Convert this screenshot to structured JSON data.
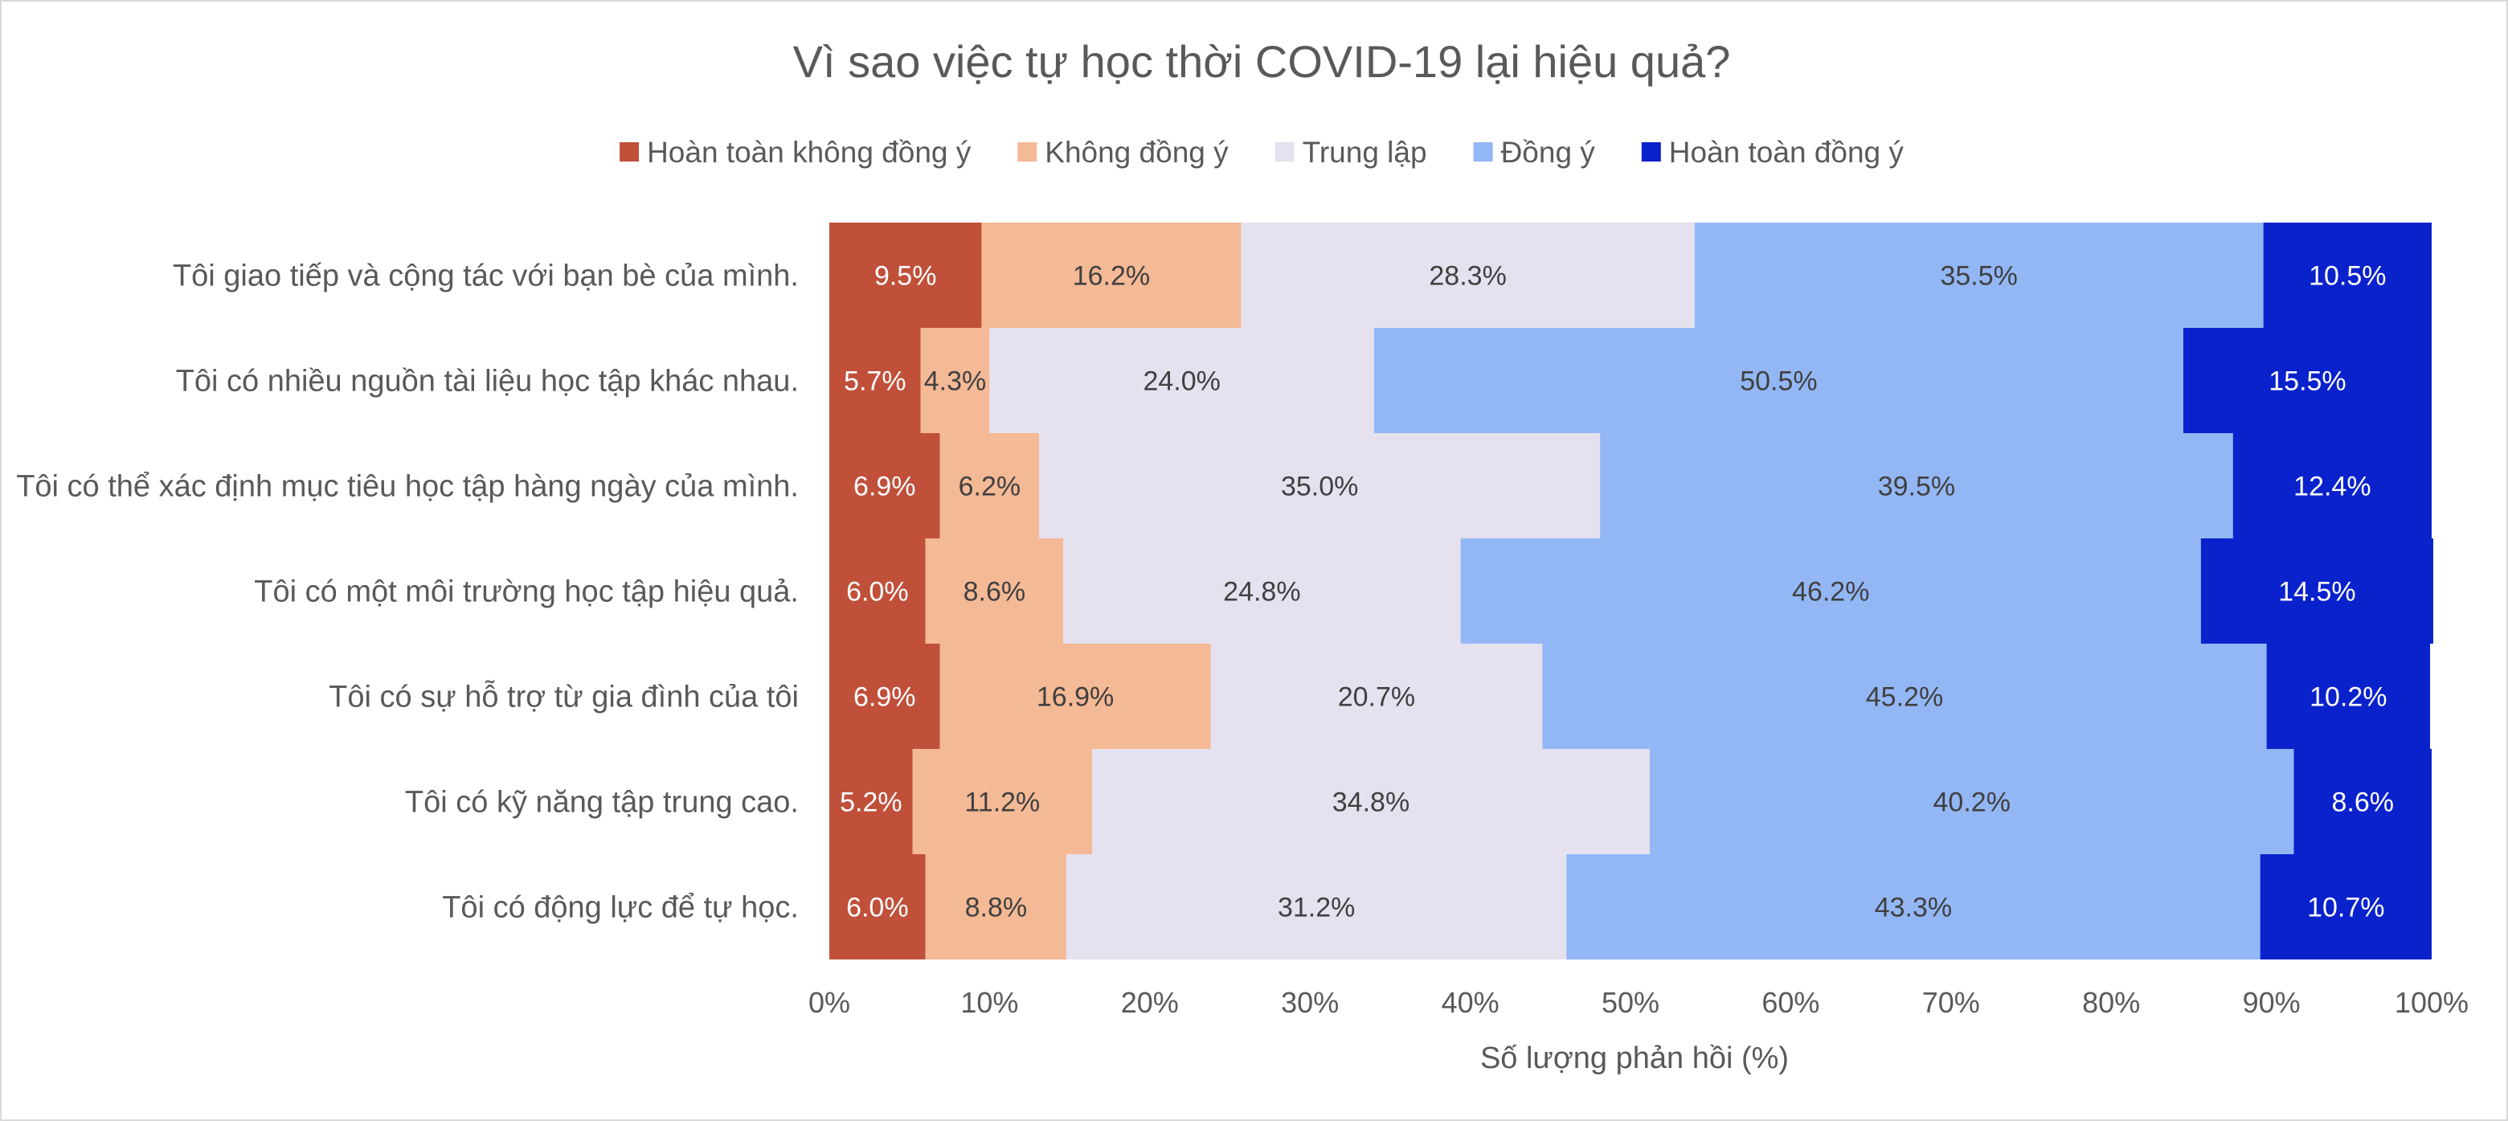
{
  "chart_data": {
    "type": "bar",
    "orientation": "horizontal",
    "stacked": "100%",
    "title": "Vì sao việc tự học thời COVID-19 lại hiệu quả?",
    "xlabel": "Số lượng phản hồi (%)",
    "ylabel": "",
    "xlim": [
      0,
      100
    ],
    "x_ticks": [
      "0%",
      "10%",
      "20%",
      "30%",
      "40%",
      "50%",
      "60%",
      "70%",
      "80%",
      "90%",
      "100%"
    ],
    "grid": false,
    "legend_position": "top",
    "categories": [
      "Tôi giao tiếp và cộng tác với bạn bè của mình.",
      "Tôi có nhiều nguồn tài liệu học tập khác nhau.",
      "Tôi có thể xác định mục tiêu học tập hàng ngày của mình.",
      "Tôi có một môi trường học tập hiệu quả.",
      "Tôi có sự hỗ trợ từ gia đình của tôi",
      "Tôi có kỹ năng tập trung cao.",
      "Tôi có động lực để tự học."
    ],
    "series": [
      {
        "name": "Hoàn toàn không đồng ý",
        "color": "#C0503A",
        "label_color": "#ffffff",
        "values": [
          9.5,
          5.7,
          6.9,
          6.0,
          6.9,
          5.2,
          6.0
        ],
        "labels": [
          "9.5%",
          "5.7%",
          "6.9%",
          "6.0%",
          "6.9%",
          "5.2%",
          "6.0%"
        ]
      },
      {
        "name": "Không đồng ý",
        "color": "#F4B995",
        "label_color": "#404040",
        "values": [
          16.2,
          4.3,
          6.2,
          8.6,
          16.9,
          11.2,
          8.8
        ],
        "labels": [
          "16.2%",
          "4.3%",
          "6.2%",
          "8.6%",
          "16.9%",
          "11.2%",
          "8.8%"
        ]
      },
      {
        "name": "Trung lập",
        "color": "#E6E1EE",
        "label_color": "#404040",
        "values": [
          28.3,
          24.0,
          35.0,
          24.8,
          20.7,
          34.8,
          31.2
        ],
        "labels": [
          "28.3%",
          "24.0%",
          "35.0%",
          "24.8%",
          "20.7%",
          "34.8%",
          "31.2%"
        ]
      },
      {
        "name": "Đồng ý",
        "color": "#93B7F5",
        "label_color": "#404040",
        "values": [
          35.5,
          50.5,
          39.5,
          46.2,
          45.2,
          40.2,
          43.3
        ],
        "labels": [
          "35.5%",
          "50.5%",
          "39.5%",
          "46.2%",
          "45.2%",
          "40.2%",
          "43.3%"
        ]
      },
      {
        "name": "Hoàn toàn đồng ý",
        "color": "#0A22CC",
        "label_color": "#ffffff",
        "values": [
          10.5,
          15.5,
          12.4,
          14.5,
          10.2,
          8.6,
          10.7
        ],
        "labels": [
          "10.5%",
          "15.5%",
          "12.4%",
          "14.5%",
          "10.2%",
          "8.6%",
          "10.7%"
        ]
      }
    ]
  }
}
